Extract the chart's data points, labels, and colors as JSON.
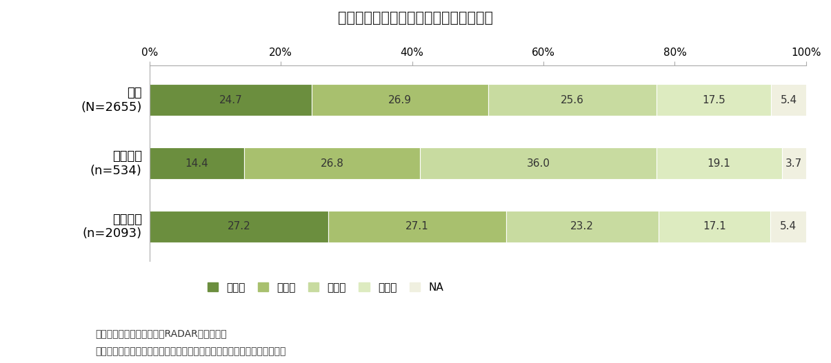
{
  "title": "図表４　金融意識セグメント別の構成比",
  "categories": [
    "全体\n(N=2655)",
    "経験あり\n(n=534)",
    "経験なし\n(n=2093)"
  ],
  "segments": [
    "低／低",
    "低／高",
    "高／高",
    "高／低",
    "NA"
  ],
  "colors": [
    "#6b8e3e",
    "#a8c06e",
    "#c8dba0",
    "#ddebc0",
    "#f0f0e0"
  ],
  "values": [
    [
      24.7,
      26.9,
      25.6,
      17.5,
      5.4
    ],
    [
      14.4,
      26.8,
      36.0,
      19.1,
      3.7
    ],
    [
      27.2,
      27.1,
      23.2,
      17.1,
      5.4
    ]
  ],
  "xlim": [
    0,
    100
  ],
  "xticks": [
    0,
    20,
    40,
    60,
    80,
    100
  ],
  "xticklabels": [
    "0%",
    "20%",
    "40%",
    "60%",
    "80%",
    "100%"
  ],
  "footnote1": "出所：日経リサーチ「金融RADAR」より作成",
  "footnote2": "（注）凡例の高低は、金融リテラシー／コンサルティング／情報希求の順",
  "background_color": "#ffffff",
  "bar_height": 0.5,
  "title_fontsize": 15,
  "axis_fontsize": 11,
  "label_fontsize": 11,
  "legend_fontsize": 11,
  "footnote_fontsize": 10,
  "yticklabel_fontsize": 13
}
